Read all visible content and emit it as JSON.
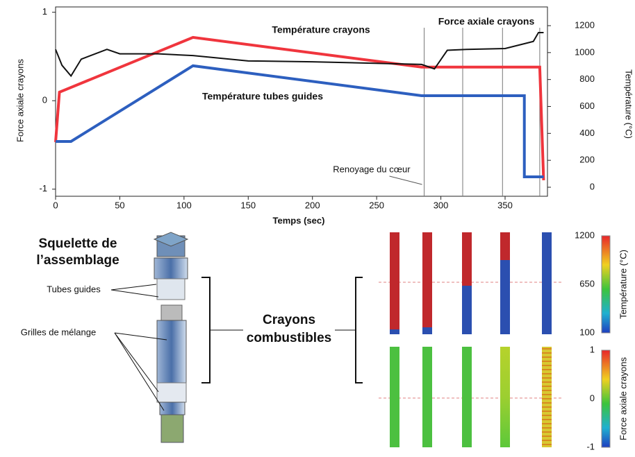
{
  "chart_data": {
    "type": "line",
    "xlabel": "Temps (sec)",
    "ylabel": "Force axiale crayons",
    "y2label": "Température (°C)",
    "xlim": [
      0,
      383
    ],
    "xticks": [
      0,
      50,
      100,
      150,
      200,
      250,
      300,
      350
    ],
    "ylim": [
      -1.08,
      1.06
    ],
    "yticks": [
      -1,
      0,
      1
    ],
    "y2lim": [
      -67,
      1339
    ],
    "y2ticks": [
      0,
      200,
      400,
      600,
      800,
      1000,
      1200
    ],
    "vlines": [
      287,
      317,
      348,
      377
    ],
    "annotations": [
      {
        "text": "Renoyage du cœur",
        "x": 287
      }
    ],
    "series": [
      {
        "name": "Température crayons",
        "color": "#f0353d",
        "axis": "y2",
        "x": [
          0,
          3,
          107,
          285,
          377,
          380
        ],
        "values": [
          335,
          706,
          1113,
          892,
          892,
          52
        ]
      },
      {
        "name": "Température tubes guides",
        "color": "#2d5fbf",
        "axis": "y2",
        "x": [
          0,
          12,
          107,
          285,
          365,
          365,
          380
        ],
        "values": [
          340,
          340,
          902,
          680,
          680,
          77,
          77
        ]
      },
      {
        "name": "Force axiale crayons",
        "color": "#111111",
        "x": [
          0,
          5,
          12,
          20,
          40,
          50,
          80,
          107,
          150,
          200,
          285,
          295,
          305,
          320,
          350,
          372,
          376,
          380
        ],
        "values": [
          0.58,
          0.4,
          0.28,
          0.47,
          0.58,
          0.53,
          0.53,
          0.51,
          0.45,
          0.44,
          0.41,
          0.36,
          0.57,
          0.58,
          0.59,
          0.67,
          0.77,
          0.77
        ]
      }
    ]
  },
  "diagram": {
    "assembly_title": [
      "Squelette de",
      "l’assemblage"
    ],
    "guide_tubes": "Tubes guides",
    "mixing_grids": "Grilles de mélange",
    "rods_title": [
      "Crayons",
      "combustibles"
    ],
    "colorbars": [
      {
        "label": "Température (°C)",
        "ticks": [
          1200,
          650,
          100
        ]
      },
      {
        "label": "Force axiale crayons",
        "ticks": [
          1,
          0,
          -1
        ]
      }
    ]
  }
}
